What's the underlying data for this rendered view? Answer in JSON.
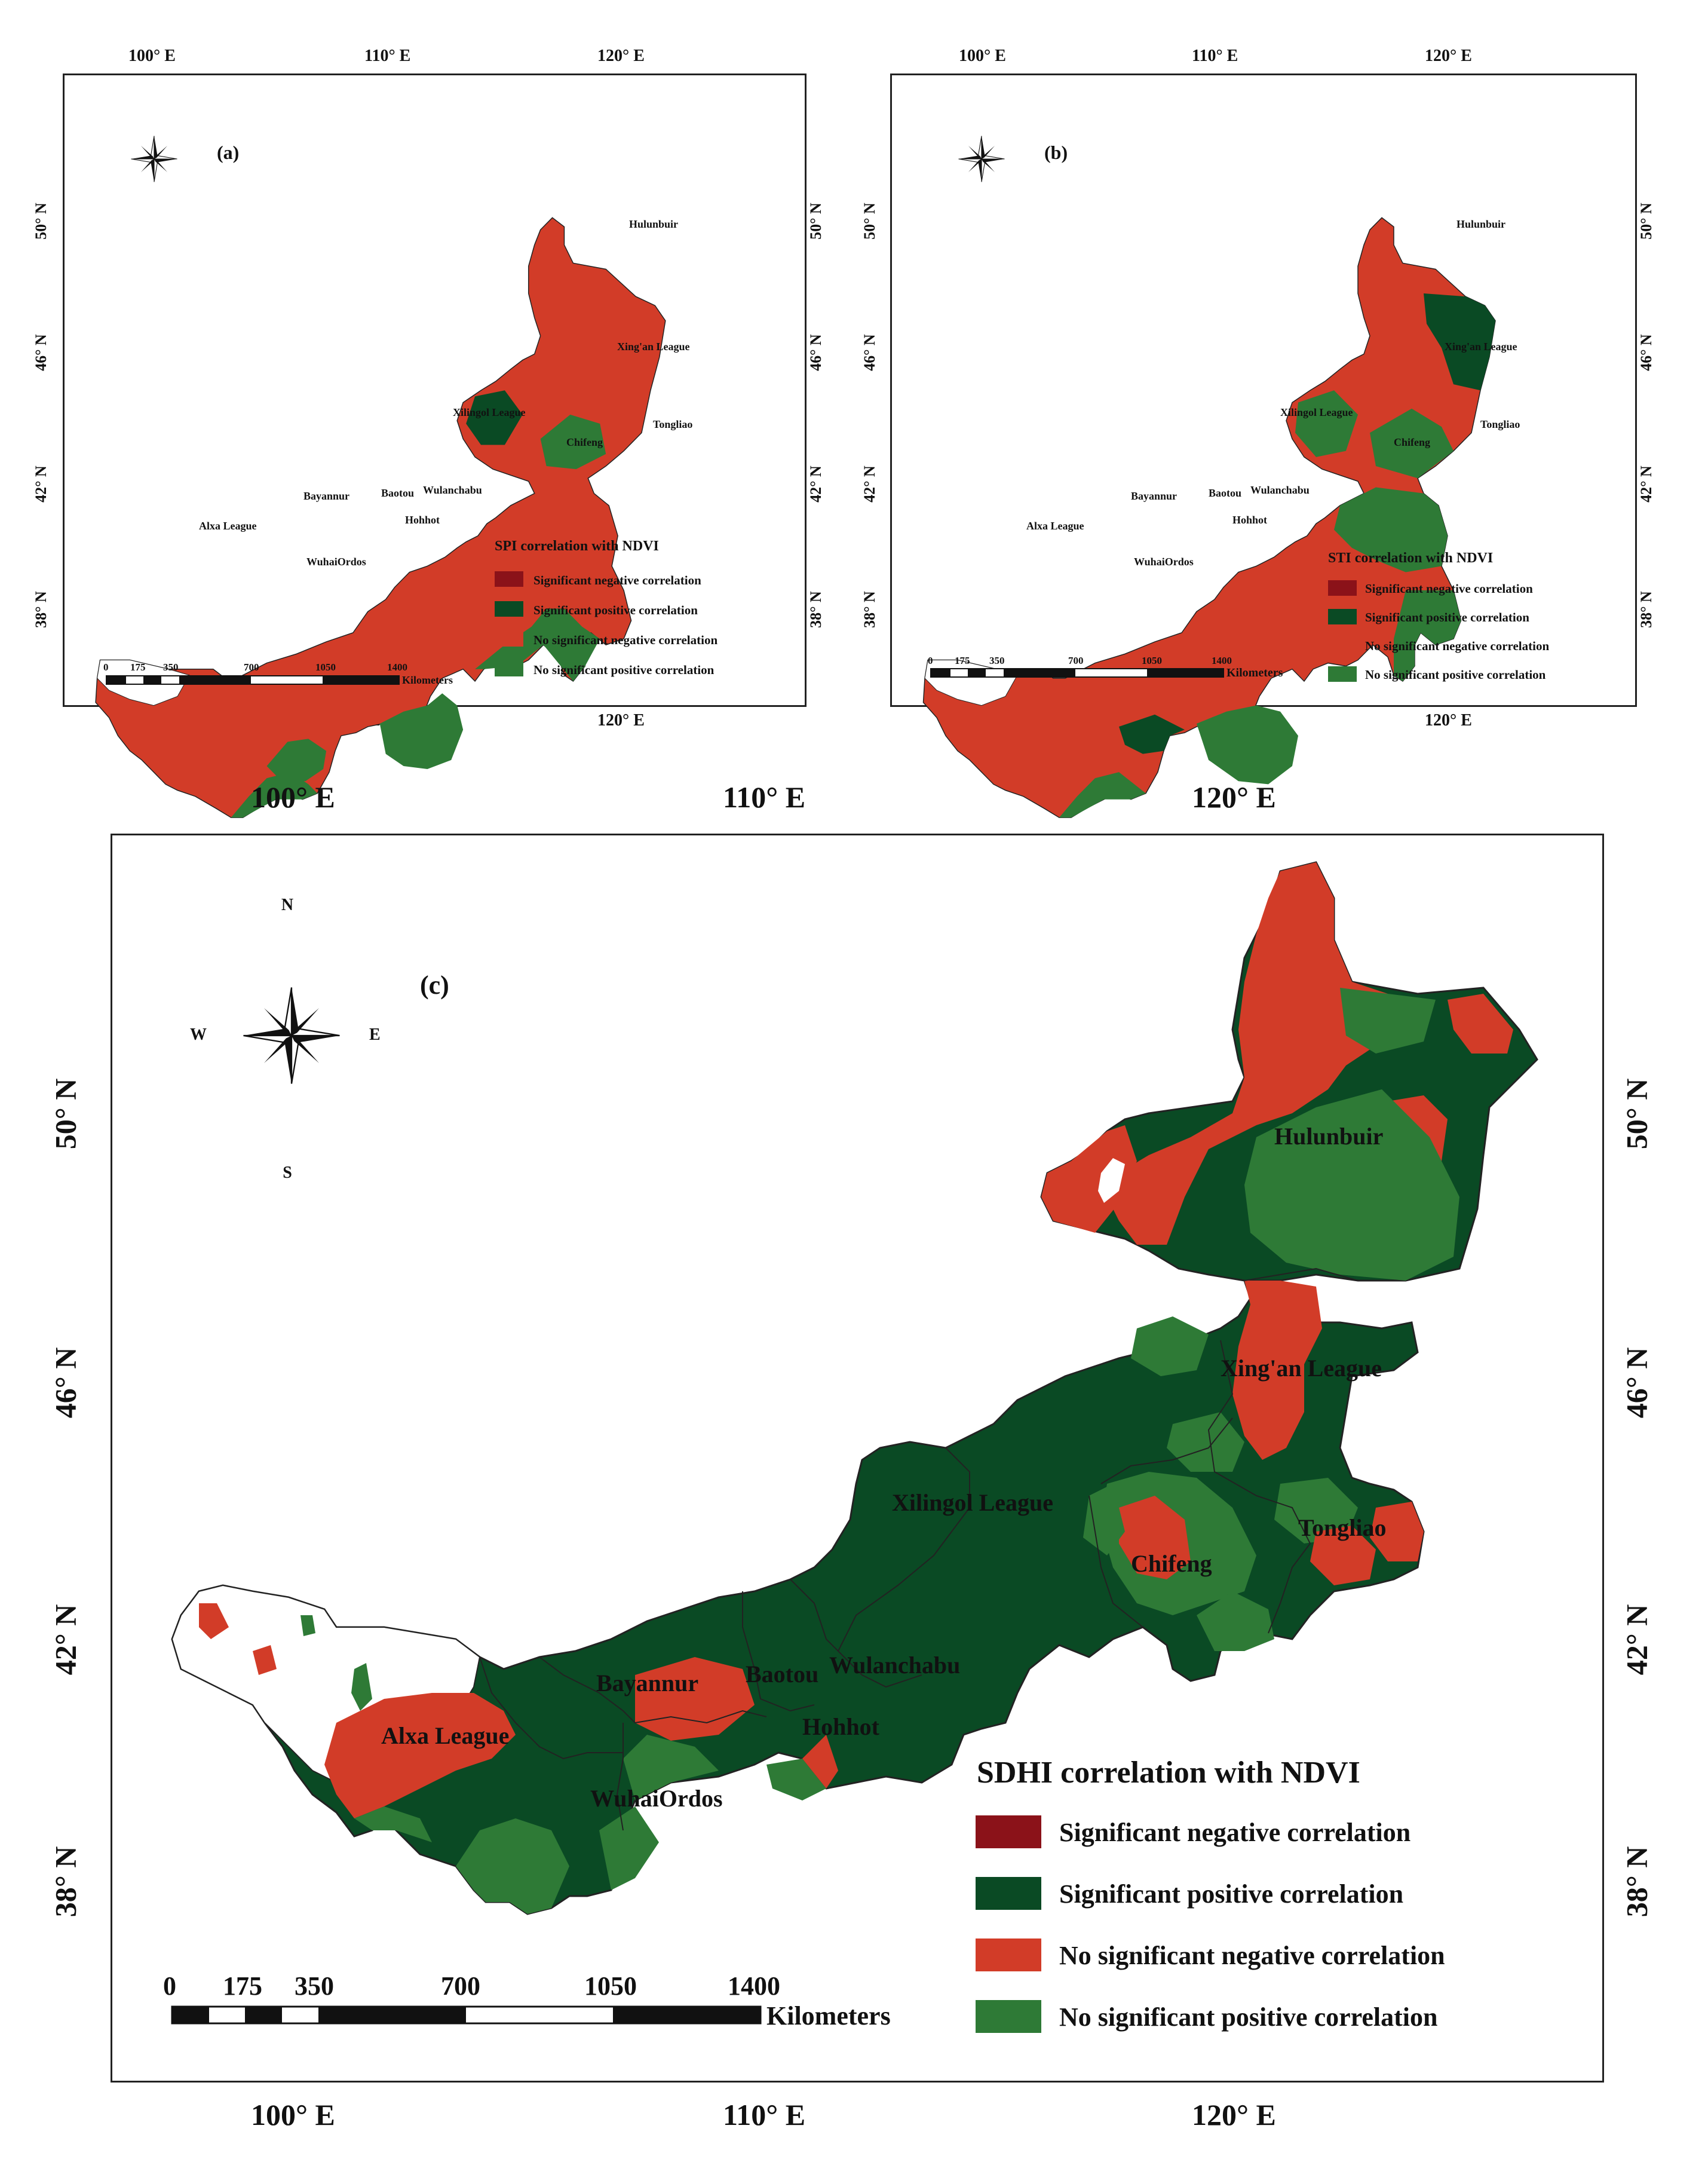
{
  "colors": {
    "significant_negative": "#8b1219",
    "significant_positive": "#0a4a24",
    "nonsig_negative": "#d23c28",
    "nonsig_positive": "#2e7a36",
    "no_data": "#ffffff",
    "boundary": "#222222"
  },
  "axes": {
    "lon_ticks": [
      "100° E",
      "110° E",
      "120° E"
    ],
    "lat_ticks": [
      "50° N",
      "46° N",
      "42° N",
      "38° N"
    ]
  },
  "compass": {
    "n": "N",
    "s": "S",
    "e": "E",
    "w": "W",
    "icon": "compass-rose-icon"
  },
  "scale_bar": {
    "ticks": [
      "0",
      "175",
      "350",
      "700",
      "1050",
      "1400"
    ],
    "unit": "Kilometers"
  },
  "regions": [
    "Hulunbuir",
    "Xing'an League",
    "Xilingol League",
    "Tongliao",
    "Chifeng",
    "Bayannur",
    "Baotou",
    "Wulanchabu",
    "Hohhot",
    "Alxa League",
    "WuhaiOrdos"
  ],
  "region_labels": {
    "hulunbuir": "Hulunbuir",
    "xingan": "Xing'an League",
    "xilingol": "Xilingol League",
    "tongliao": "Tongliao",
    "chifeng": "Chifeng",
    "bayannur": "Bayannur",
    "baotou": "Baotou",
    "wulanchabu": "Wulanchabu",
    "hohhot": "Hohhot",
    "alxa": "Alxa League",
    "wuhaiordos": "WuhaiOrdos"
  },
  "panels": {
    "a": {
      "tag": "(a)",
      "legend_title": "SPI correlation with NDVI",
      "legend_items": [
        "Significant negative correlation",
        "Significant positive correlation",
        "No significant negative correlation",
        "No significant positive correlation"
      ],
      "dominant_class": "nonsig_negative"
    },
    "b": {
      "tag": "(b)",
      "legend_title": "STI correlation with NDVI",
      "legend_items": [
        "Significant negative correlation",
        "Significant positive correlation",
        "No significant negative correlation",
        "No significant positive correlation"
      ],
      "dominant_class": "nonsig_negative"
    },
    "c": {
      "tag": "(c)",
      "legend_title": "SDHI correlation with NDVI",
      "legend_items": [
        "Significant negative correlation",
        "Significant positive correlation",
        "No significant negative correlation",
        "No significant positive correlation"
      ],
      "dominant_class": "significant_positive"
    }
  }
}
